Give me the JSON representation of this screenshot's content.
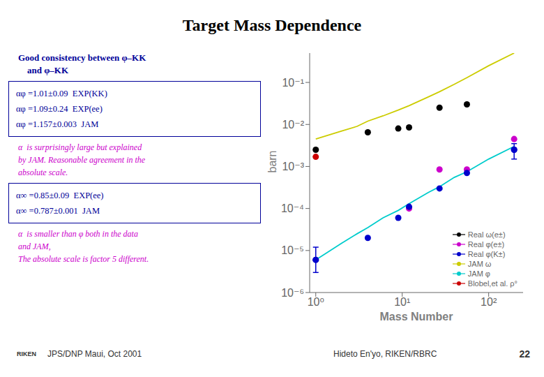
{
  "chart_data": {
    "type": "scatter",
    "title": "Target Mass Dependence",
    "xlabel": "Mass Number",
    "ylabel": "barn",
    "log": true,
    "legend": "lower right",
    "xlim": [
      0.85,
      250
    ],
    "xticks": [
      {
        "value": 1,
        "label": "10⁰"
      },
      {
        "value": 10,
        "label": "10¹"
      },
      {
        "value": 100,
        "label": "10²"
      }
    ],
    "ylim": [
      1e-06,
      0.5
    ],
    "yticks": [
      {
        "value": 1e-06,
        "label": "10⁻⁶"
      },
      {
        "value": 1e-05,
        "label": "10⁻⁵"
      },
      {
        "value": 0.0001,
        "label": "10⁻⁴"
      },
      {
        "value": 0.001,
        "label": "10⁻³"
      },
      {
        "value": 0.01,
        "label": "10⁻²"
      },
      {
        "value": 0.1,
        "label": "10⁻¹"
      }
    ],
    "series": [
      {
        "name": "Real ω(e±)",
        "type": "scatter",
        "color": "#000000",
        "x": [
          1,
          4,
          9,
          12,
          27,
          56
        ],
        "values": [
          0.0025,
          0.0065,
          0.008,
          0.0085,
          0.025,
          0.03
        ]
      },
      {
        "name": "Real φ(e±)",
        "type": "scatter",
        "color": "#cc00cc",
        "x": [
          12,
          27,
          56,
          197
        ],
        "values": [
          0.0001,
          0.00085,
          0.00085,
          0.0045
        ]
      },
      {
        "name": "Real φ(K±)",
        "type": "scatter",
        "color": "#0000cc",
        "x": [
          1,
          4,
          9,
          12,
          27,
          56,
          197
        ],
        "values": [
          6e-06,
          2e-05,
          6e-05,
          0.00011,
          0.0003,
          0.0007,
          0.0025
        ],
        "error_low": [
          3e-06,
          null,
          null,
          null,
          null,
          null,
          0.001
        ],
        "error_high": [
          6e-06,
          null,
          null,
          null,
          null,
          null,
          0.001
        ]
      },
      {
        "name": "JAM ω",
        "type": "line",
        "color": "#cccc00",
        "x": [
          1,
          2,
          3,
          4,
          6,
          9,
          12,
          20,
          27,
          40,
          56,
          100,
          197
        ],
        "values": [
          0.0045,
          0.007,
          0.009,
          0.012,
          0.016,
          0.022,
          0.028,
          0.045,
          0.06,
          0.09,
          0.13,
          0.25,
          0.5
        ]
      },
      {
        "name": "JAM φ",
        "type": "line",
        "color": "#00cccc",
        "x": [
          1,
          2,
          3,
          4,
          6,
          9,
          12,
          20,
          27,
          40,
          56,
          100,
          197
        ],
        "values": [
          6e-06,
          1.5e-05,
          2.5e-05,
          3.5e-05,
          6e-05,
          9e-05,
          0.00013,
          0.00024,
          0.00033,
          0.00055,
          0.00075,
          0.0015,
          0.003
        ]
      },
      {
        "name": "Blobel,et al. ρ°",
        "type": "scatter",
        "color": "#cc0000",
        "x": [
          1
        ],
        "values": [
          0.0017
        ]
      }
    ],
    "annotations": [
      {
        "text": [
          "Good consistency between φ–KK",
          "    and φ–KK"
        ],
        "color": "#000099"
      },
      {
        "text": [
          "αφ =1.01±0.09  EXP(KK)",
          "αφ =1.09±0.24  EXP(ee)",
          "αφ =1.157±0.003  JAM"
        ],
        "color": "#000099"
      },
      {
        "text": [
          "α  is surprisingly large but explained",
          "by JAM. Reasonable agreement in the",
          "absolute scale."
        ],
        "color": "#cc00cc"
      },
      {
        "text": [
          "α∞ =0.85±0.09  EXP(ee)",
          "α∞ =0.787±0.001  JAM"
        ],
        "color": "#000099"
      },
      {
        "text": [
          "α  is smaller than φ both in the data",
          "and JAM,",
          "The absolute scale is factor 5 different."
        ],
        "color": "#cc00cc"
      },
      {
        "text": [
          "RIKEN"
        ]
      },
      {
        "text": [
          "JPS/DNP Maui, Oct 2001"
        ]
      },
      {
        "text": [
          "Hideto En'yo, RIKEN/RBRC"
        ]
      },
      {
        "text": [
          "22"
        ]
      }
    ]
  }
}
